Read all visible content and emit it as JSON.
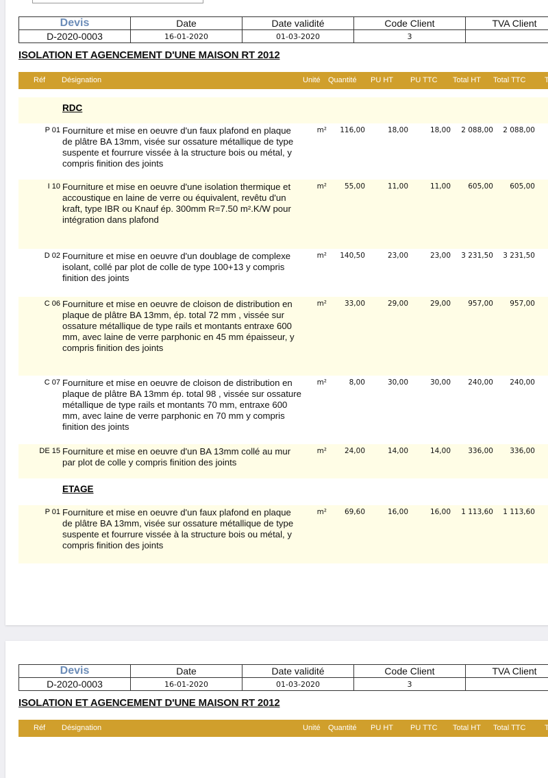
{
  "info": {
    "headers": [
      "Devis",
      "Date",
      "Date validité",
      "Code Client",
      "TVA Client"
    ],
    "values": [
      "D-2020-0003",
      "16-01-2020",
      "01-03-2020",
      "3",
      ""
    ]
  },
  "title": "ISOLATION ET AGENCEMENT D'UNE MAISON RT 2012",
  "columns": [
    "Réf",
    "Désignation",
    "Unité",
    "Quantité",
    "PU HT",
    "PU TTC",
    "Total HT",
    "Total TTC",
    "T"
  ],
  "colors": {
    "header": "#d09f2c",
    "row_alt": "#fffde6",
    "devis": "#6b8cb8"
  },
  "rows": [
    {
      "type": "section",
      "label": "RDC"
    },
    {
      "ref": "P 01",
      "designation": "Fourniture et mise en oeuvre d'un faux plafond en plaque de plâtre BA 13mm, visée sur ossature métallique de type suspente et fourrure vissée à la structure bois ou métal, y compris finition des joints",
      "unite": "m²",
      "quantite": "116,00",
      "pu_ht": "18,00",
      "pu_ttc": "18,00",
      "total_ht": "2 088,00",
      "total_ttc": "2 088,00"
    },
    {
      "ref": "I 10",
      "designation": "Fourniture et mise en oeuvre d'une isolation thermique et accoustique en laine de verre ou équivalent, revêtu d'un kraft, type IBR ou Knauf ép. 300mm  R=7.50 m².K/W pour intégration dans plafond",
      "unite": "m²",
      "quantite": "55,00",
      "pu_ht": "11,00",
      "pu_ttc": "11,00",
      "total_ht": "605,00",
      "total_ttc": "605,00"
    },
    {
      "ref": "D 02",
      "designation": "Fourniture et mise en oeuvre d'un doublage de complexe isolant, collé par plot de colle de type 100+13 y compris finition des joints",
      "unite": "m²",
      "quantite": "140,50",
      "pu_ht": "23,00",
      "pu_ttc": "23,00",
      "total_ht": "3 231,50",
      "total_ttc": "3 231,50"
    },
    {
      "ref": "C 06",
      "designation": "Fourniture et mise en oeuvre de cloison de distribution en plaque de plâtre BA 13mm, ép. total 72 mm , vissée sur ossature métallique de type rails et montants entraxe 600 mm, avec laine de verre parphonic en 45 mm épaisseur, y compris finition des joints",
      "unite": "m²",
      "quantite": "33,00",
      "pu_ht": "29,00",
      "pu_ttc": "29,00",
      "total_ht": "957,00",
      "total_ttc": "957,00"
    },
    {
      "ref": "C 07",
      "designation": "Fourniture et mise en oeuvre de cloison de distribution en plaque de plâtre BA 13mm ép. total 98 , vissée sur ossature métallique de type rails et montants 70 mm, entraxe 600 mm, avec laine de verre parphonic en 70 mm y compris finition des joints",
      "unite": "m²",
      "quantite": "8,00",
      "pu_ht": "30,00",
      "pu_ttc": "30,00",
      "total_ht": "240,00",
      "total_ttc": "240,00"
    },
    {
      "ref": "DE 15",
      "designation": "Fourniture et mise en oeuvre d'un BA 13mm collé au mur par plot de colle y compris finition des joints",
      "unite": "m²",
      "quantite": "24,00",
      "pu_ht": "14,00",
      "pu_ttc": "14,00",
      "total_ht": "336,00",
      "total_ttc": "336,00"
    },
    {
      "type": "section",
      "label": "ETAGE"
    },
    {
      "ref": "P 01",
      "designation": "Fourniture et mise en oeuvre d'un faux plafond en plaque de plâtre BA 13mm, visée sur ossature métallique de type suspente et fourrure vissée à la structure bois ou métal, y compris finition des joints",
      "unite": "m²",
      "quantite": "69,60",
      "pu_ht": "16,00",
      "pu_ttc": "16,00",
      "total_ht": "1 113,60",
      "total_ttc": "1 113,60"
    }
  ]
}
